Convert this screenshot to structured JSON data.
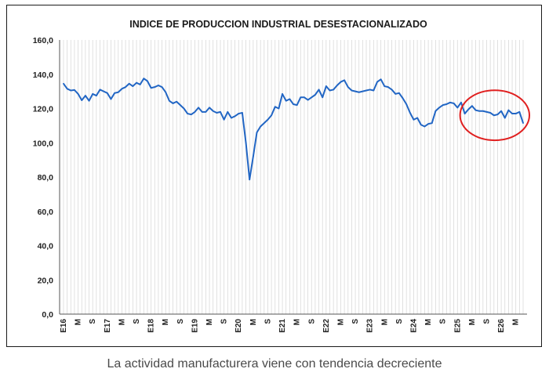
{
  "caption": "La actividad manufacturera viene con tendencia decreciente",
  "chart_data": {
    "type": "line",
    "title": "INDICE DE PRODUCCION INDUSTRIAL DESESTACIONALIZADO",
    "xlabel": "",
    "ylabel": "",
    "ylim": [
      0,
      160
    ],
    "y_ticks": [
      "0,0",
      "20,0",
      "40,0",
      "60,0",
      "80,0",
      "100,0",
      "120,0",
      "140,0",
      "160,0"
    ],
    "x_tick_labels": [
      {
        "i": 0,
        "label": "E16"
      },
      {
        "i": 4,
        "label": "M"
      },
      {
        "i": 8,
        "label": "S"
      },
      {
        "i": 12,
        "label": "E17"
      },
      {
        "i": 16,
        "label": "M"
      },
      {
        "i": 20,
        "label": "S"
      },
      {
        "i": 24,
        "label": "E18"
      },
      {
        "i": 28,
        "label": "M"
      },
      {
        "i": 32,
        "label": "S"
      },
      {
        "i": 36,
        "label": "E19"
      },
      {
        "i": 40,
        "label": "M"
      },
      {
        "i": 44,
        "label": "S"
      },
      {
        "i": 48,
        "label": "E20"
      },
      {
        "i": 52,
        "label": "M"
      },
      {
        "i": 56,
        "label": "S"
      },
      {
        "i": 60,
        "label": "E21"
      },
      {
        "i": 64,
        "label": "M"
      },
      {
        "i": 68,
        "label": "S"
      },
      {
        "i": 72,
        "label": "E22"
      },
      {
        "i": 76,
        "label": "M"
      },
      {
        "i": 80,
        "label": "S"
      },
      {
        "i": 84,
        "label": "E23"
      },
      {
        "i": 88,
        "label": "M"
      },
      {
        "i": 92,
        "label": "S"
      },
      {
        "i": 96,
        "label": "E24"
      },
      {
        "i": 100,
        "label": "M"
      },
      {
        "i": 104,
        "label": "S"
      },
      {
        "i": 108,
        "label": "E25"
      },
      {
        "i": 112,
        "label": "M"
      },
      {
        "i": 116,
        "label": "S"
      },
      {
        "i": 120,
        "label": "E26"
      },
      {
        "i": 124,
        "label": "M"
      }
    ],
    "grid": "vertical",
    "legend": "none",
    "series": [
      {
        "color": "#2266c4",
        "values": [
          134.5,
          131.5,
          130.5,
          130.8,
          128.5,
          124.8,
          127.5,
          124.5,
          128.5,
          127.5,
          131.0,
          130.0,
          129.0,
          125.5,
          129.0,
          129.5,
          131.5,
          132.5,
          134.5,
          133.0,
          135.0,
          134.0,
          137.5,
          136.0,
          132.0,
          132.5,
          133.5,
          132.5,
          129.5,
          124.5,
          123.0,
          124.0,
          122.0,
          120.0,
          117.0,
          116.5,
          118.0,
          120.5,
          118.0,
          118.0,
          120.5,
          118.5,
          117.5,
          118.0,
          113.5,
          118.0,
          114.5,
          115.5,
          117.0,
          117.5,
          100.0,
          78.5,
          92.0,
          106.0,
          109.5,
          111.5,
          113.5,
          116.0,
          121.0,
          120.0,
          128.5,
          124.5,
          125.5,
          122.5,
          122.0,
          126.5,
          126.5,
          125.0,
          126.5,
          128.0,
          131.0,
          126.5,
          133.0,
          130.5,
          131.0,
          133.5,
          135.5,
          136.5,
          132.5,
          130.5,
          130.0,
          129.5,
          130.0,
          130.5,
          131.0,
          130.5,
          135.5,
          137.0,
          133.0,
          132.5,
          131.0,
          128.5,
          129.0,
          126.0,
          122.5,
          117.5,
          113.5,
          114.5,
          110.5,
          109.5,
          111.0,
          111.5,
          118.5,
          120.5,
          122.0,
          122.5,
          123.5,
          123.0,
          120.5,
          123.5,
          117.0,
          119.5,
          121.5,
          119.0,
          118.5,
          118.5,
          118.0,
          117.5,
          116.0,
          116.5,
          118.5,
          114.5,
          119.0,
          117.0,
          117.0,
          118.0,
          111.5
        ]
      }
    ],
    "annotation": {
      "shape": "ellipse",
      "color": "#e02020",
      "from_index": 110,
      "to_index": 126
    }
  }
}
